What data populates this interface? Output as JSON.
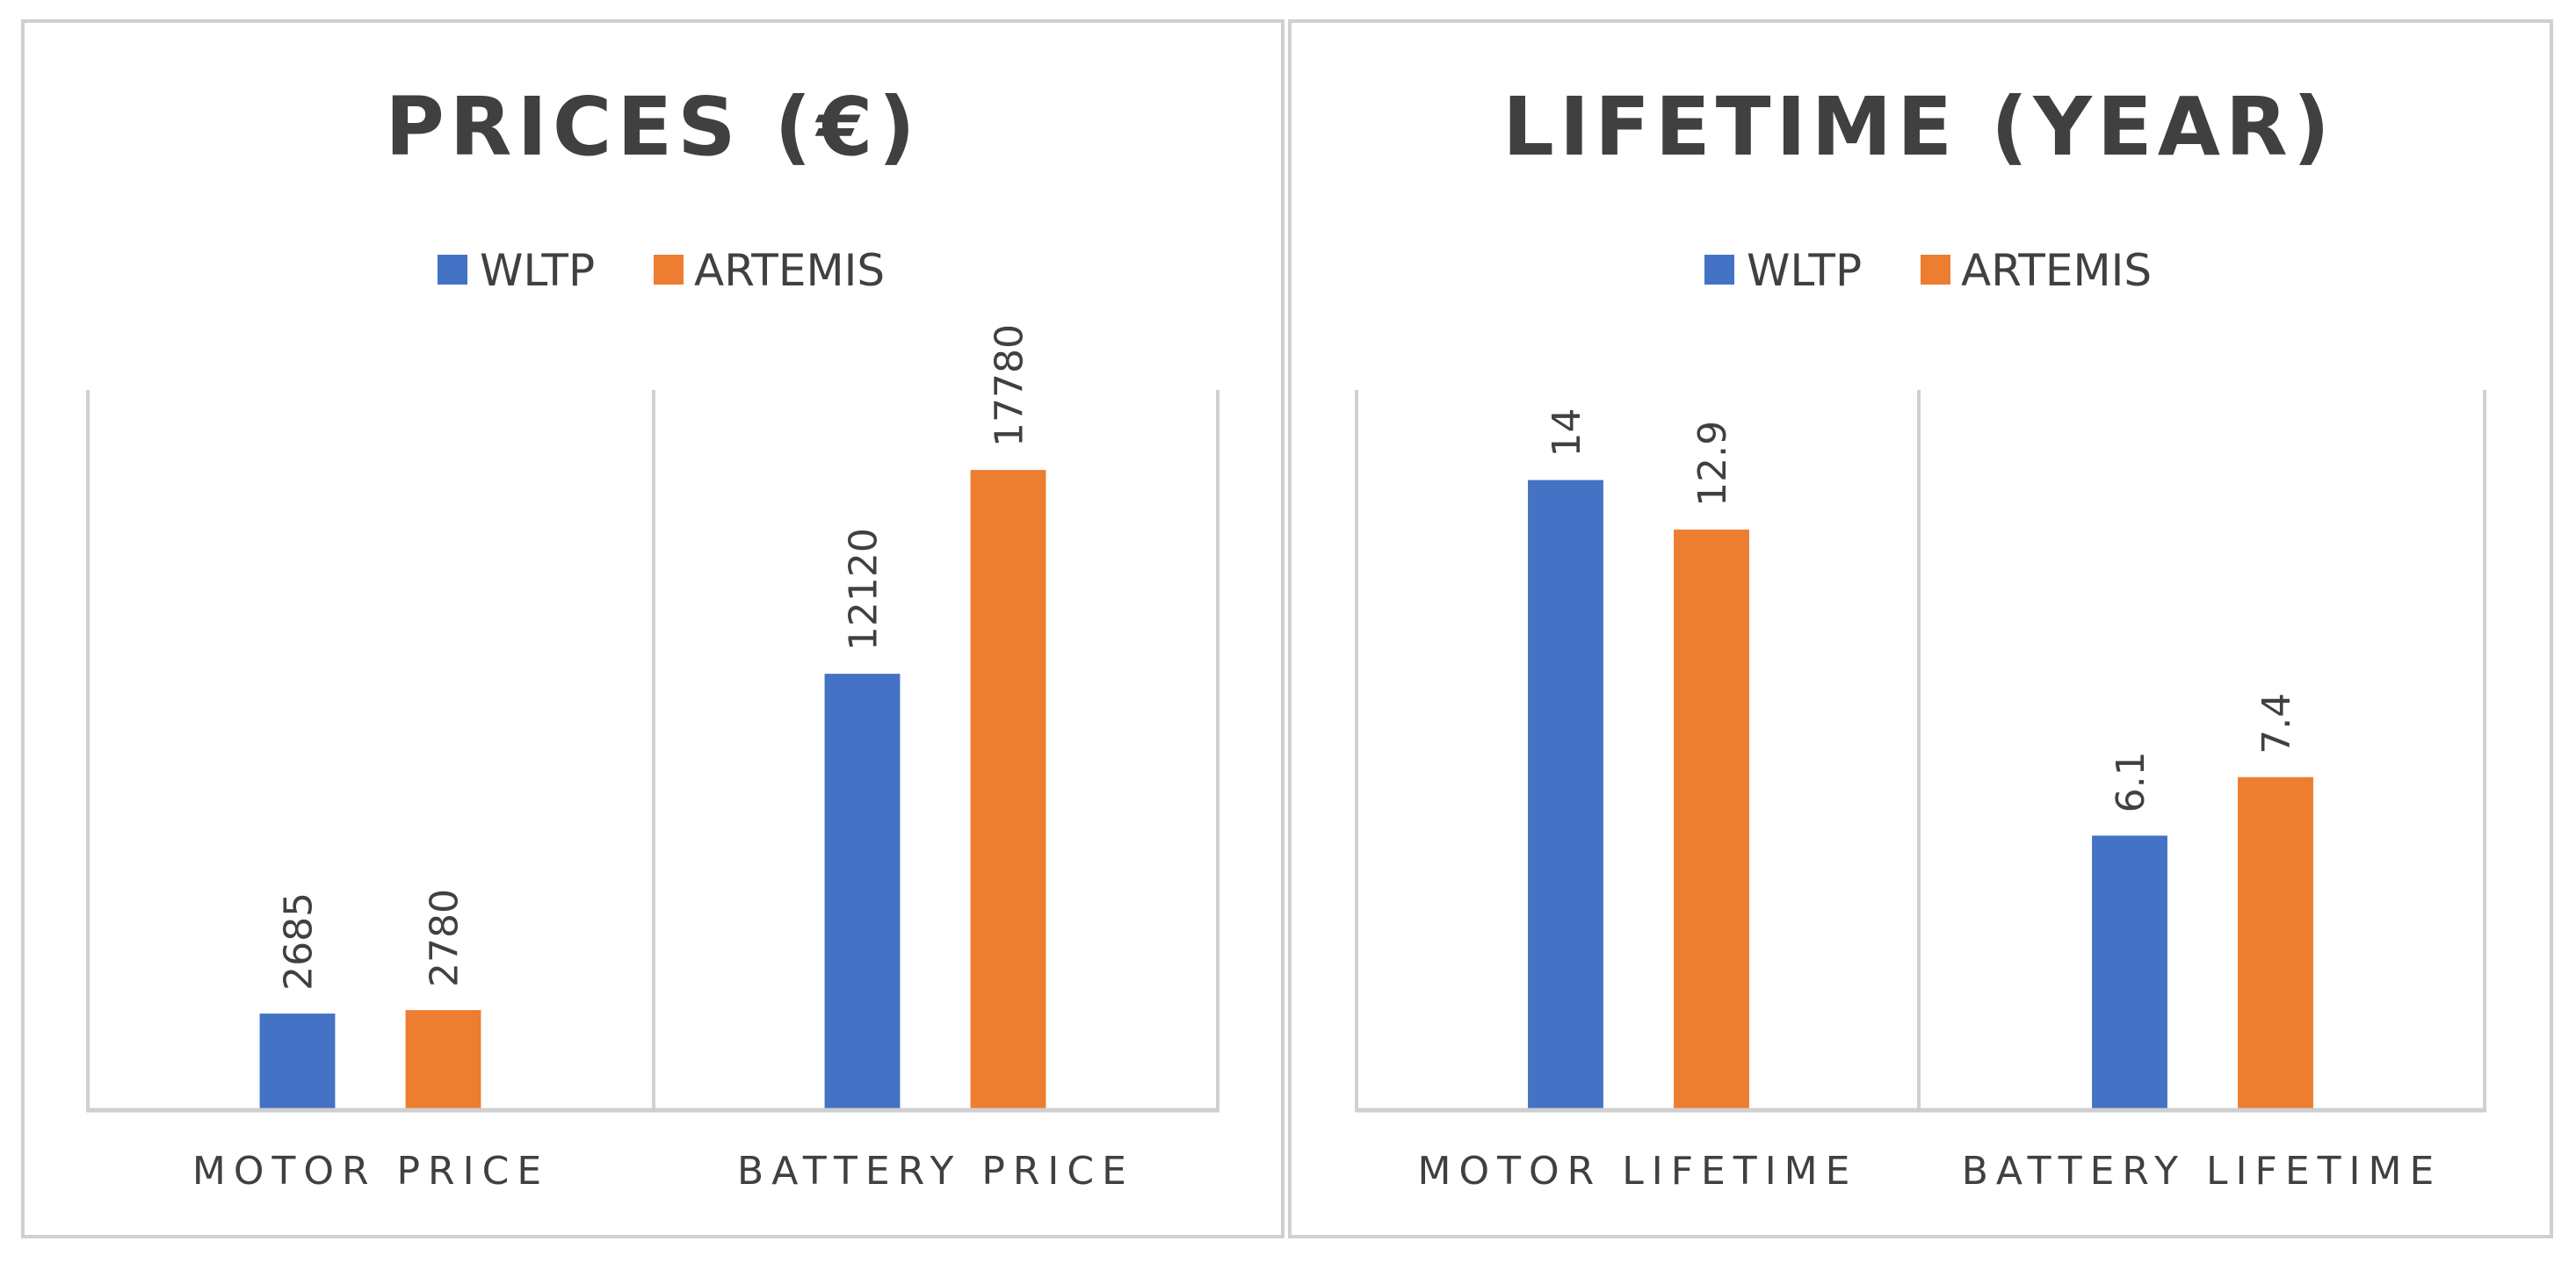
{
  "chart_data": [
    {
      "type": "bar",
      "title": "PRICES (€)",
      "categories": [
        "MOTOR PRICE",
        "BATTERY PRICE"
      ],
      "series": [
        {
          "name": "WLTP",
          "color": "#4472C4",
          "values": [
            2685,
            12120
          ]
        },
        {
          "name": "ARTEMIS",
          "color": "#ED7D31",
          "values": [
            2780,
            17780
          ]
        }
      ],
      "value_labels": [
        [
          "2685",
          "12120"
        ],
        [
          "2780",
          "17780"
        ]
      ],
      "xlabel": "",
      "ylabel": "",
      "ylim": [
        0,
        20000
      ],
      "legend": "top-center",
      "grid": "category-separators",
      "value_label_rotation": "vertical"
    },
    {
      "type": "bar",
      "title": "LIFETIME (YEAR)",
      "categories": [
        "MOTOR LIFETIME",
        "BATTERY LIFETIME"
      ],
      "series": [
        {
          "name": "WLTP",
          "color": "#4472C4",
          "values": [
            14,
            6.1
          ]
        },
        {
          "name": "ARTEMIS",
          "color": "#ED7D31",
          "values": [
            12.9,
            7.4
          ]
        }
      ],
      "value_labels": [
        [
          "14",
          "6.1"
        ],
        [
          "12.9",
          "7.4"
        ]
      ],
      "xlabel": "",
      "ylabel": "",
      "ylim": [
        0,
        16
      ],
      "legend": "top-center",
      "grid": "category-separators",
      "value_label_rotation": "vertical"
    }
  ]
}
